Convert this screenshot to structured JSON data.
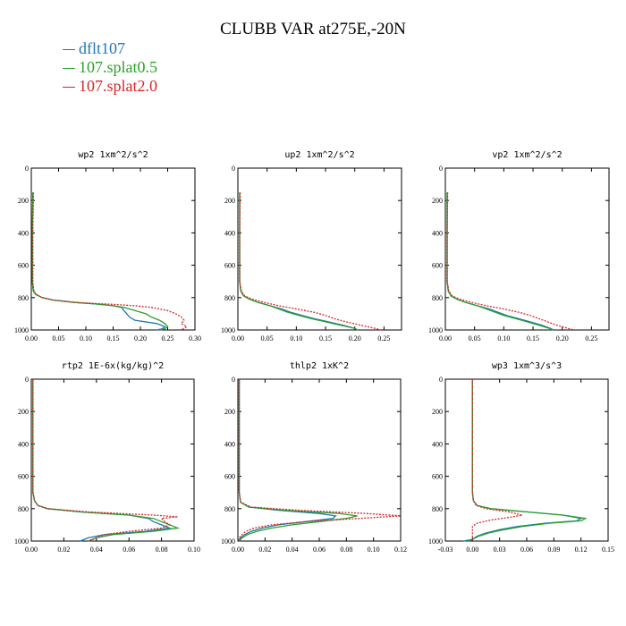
{
  "title": "CLUBB VAR at275E,-20N",
  "legend": [
    {
      "label": "dflt107",
      "color": "#1f77b4"
    },
    {
      "label": "107.splat0.5",
      "color": "#2ca02c"
    },
    {
      "label": "107.splat2.0",
      "color": "#d62728"
    }
  ],
  "chart_data": [
    {
      "type": "line",
      "title": "wp2   1xm^2/s^2",
      "xlim": [
        0,
        0.3
      ],
      "xticks": [
        0.0,
        0.05,
        0.1,
        0.15,
        0.2,
        0.25,
        0.3
      ],
      "xtick_labels": [
        "0.00",
        "0.05",
        "0.10",
        "0.15",
        "0.20",
        "0.25",
        "0.30"
      ],
      "ylim": [
        1000,
        0
      ],
      "yticks": [
        0,
        200,
        400,
        600,
        800,
        1000
      ],
      "series": [
        {
          "name": "dflt107",
          "y": [
            150,
            400,
            600,
            700,
            740,
            760,
            780,
            800,
            815,
            830,
            840,
            850,
            860,
            880,
            900,
            920,
            940,
            960,
            980,
            992,
            1000
          ],
          "x": [
            0.003,
            0.002,
            0.002,
            0.002,
            0.003,
            0.004,
            0.008,
            0.02,
            0.04,
            0.08,
            0.12,
            0.15,
            0.165,
            0.17,
            0.175,
            0.18,
            0.19,
            0.23,
            0.245,
            0.24,
            0.23
          ]
        },
        {
          "name": "107.splat0.5",
          "y": [
            150,
            400,
            600,
            700,
            740,
            760,
            780,
            800,
            815,
            830,
            840,
            850,
            860,
            880,
            900,
            920,
            940,
            960,
            980,
            992,
            1000
          ],
          "x": [
            0.003,
            0.002,
            0.002,
            0.002,
            0.003,
            0.004,
            0.008,
            0.02,
            0.04,
            0.08,
            0.12,
            0.15,
            0.17,
            0.19,
            0.21,
            0.22,
            0.235,
            0.245,
            0.25,
            0.245,
            0.235
          ]
        },
        {
          "name": "107.splat2.0",
          "y": [
            150,
            400,
            600,
            700,
            740,
            760,
            780,
            800,
            815,
            830,
            840,
            850,
            860,
            880,
            900,
            920,
            940,
            960,
            980,
            992,
            1000
          ],
          "x": [
            0.004,
            0.003,
            0.003,
            0.003,
            0.004,
            0.005,
            0.009,
            0.02,
            0.04,
            0.08,
            0.14,
            0.19,
            0.22,
            0.25,
            0.265,
            0.275,
            0.28,
            0.275,
            0.285,
            0.28,
            0.27
          ]
        }
      ]
    },
    {
      "type": "line",
      "title": "up2   1xm^2/s^2",
      "xlim": [
        0,
        0.28
      ],
      "xticks": [
        0.0,
        0.05,
        0.1,
        0.15,
        0.2,
        0.25
      ],
      "xtick_labels": [
        "0.00",
        "0.05",
        "0.10",
        "0.15",
        "0.20",
        "0.25"
      ],
      "ylim": [
        1000,
        0
      ],
      "yticks": [
        0,
        200,
        400,
        600,
        800,
        1000
      ],
      "series": [
        {
          "name": "dflt107",
          "y": [
            150,
            400,
            600,
            700,
            760,
            790,
            810,
            830,
            850,
            870,
            890,
            910,
            930,
            950,
            970,
            990,
            1000
          ],
          "x": [
            0.003,
            0.003,
            0.003,
            0.003,
            0.005,
            0.01,
            0.02,
            0.035,
            0.055,
            0.075,
            0.09,
            0.11,
            0.13,
            0.155,
            0.18,
            0.2,
            0.205
          ]
        },
        {
          "name": "107.splat0.5",
          "y": [
            150,
            400,
            600,
            700,
            760,
            790,
            810,
            830,
            850,
            870,
            890,
            910,
            930,
            950,
            970,
            990,
            1000
          ],
          "x": [
            0.003,
            0.003,
            0.003,
            0.003,
            0.005,
            0.01,
            0.02,
            0.035,
            0.055,
            0.07,
            0.085,
            0.105,
            0.125,
            0.15,
            0.175,
            0.2,
            0.205
          ]
        },
        {
          "name": "107.splat2.0",
          "y": [
            150,
            400,
            600,
            700,
            760,
            790,
            810,
            830,
            850,
            870,
            890,
            910,
            930,
            950,
            970,
            990,
            1000
          ],
          "x": [
            0.004,
            0.003,
            0.003,
            0.003,
            0.006,
            0.012,
            0.025,
            0.045,
            0.07,
            0.1,
            0.13,
            0.15,
            0.165,
            0.185,
            0.21,
            0.235,
            0.245
          ]
        }
      ]
    },
    {
      "type": "line",
      "title": "vp2   1xm^2/s^2",
      "xlim": [
        0,
        0.28
      ],
      "xticks": [
        0.0,
        0.05,
        0.1,
        0.15,
        0.2,
        0.25
      ],
      "xtick_labels": [
        "0.00",
        "0.05",
        "0.10",
        "0.15",
        "0.20",
        "0.25"
      ],
      "ylim": [
        1000,
        0
      ],
      "yticks": [
        0,
        200,
        400,
        600,
        800,
        1000
      ],
      "series": [
        {
          "name": "dflt107",
          "y": [
            150,
            400,
            600,
            700,
            760,
            790,
            810,
            830,
            850,
            870,
            890,
            910,
            930,
            950,
            970,
            990,
            1000
          ],
          "x": [
            0.003,
            0.003,
            0.003,
            0.003,
            0.005,
            0.01,
            0.02,
            0.035,
            0.055,
            0.075,
            0.09,
            0.105,
            0.125,
            0.145,
            0.165,
            0.18,
            0.185
          ]
        },
        {
          "name": "107.splat0.5",
          "y": [
            150,
            400,
            600,
            700,
            760,
            790,
            810,
            830,
            850,
            870,
            890,
            910,
            930,
            950,
            970,
            990,
            1000
          ],
          "x": [
            0.003,
            0.003,
            0.003,
            0.003,
            0.005,
            0.01,
            0.02,
            0.035,
            0.055,
            0.07,
            0.085,
            0.1,
            0.12,
            0.14,
            0.16,
            0.178,
            0.183
          ]
        },
        {
          "name": "107.splat2.0",
          "y": [
            150,
            400,
            600,
            700,
            760,
            790,
            810,
            830,
            850,
            870,
            890,
            910,
            930,
            950,
            970,
            990,
            1000
          ],
          "x": [
            0.004,
            0.003,
            0.003,
            0.003,
            0.006,
            0.012,
            0.025,
            0.045,
            0.07,
            0.1,
            0.125,
            0.145,
            0.16,
            0.175,
            0.19,
            0.21,
            0.22
          ]
        }
      ]
    },
    {
      "type": "line",
      "title": "rtp2   1E-6x(kg/kg)^2",
      "xlim": [
        0,
        0.1
      ],
      "xticks": [
        0.0,
        0.02,
        0.04,
        0.06,
        0.08,
        0.1
      ],
      "xtick_labels": [
        "0.00",
        "0.02",
        "0.04",
        "0.06",
        "0.08",
        "0.10"
      ],
      "ylim": [
        1000,
        0
      ],
      "yticks": [
        0,
        200,
        400,
        600,
        800,
        1000
      ],
      "series": [
        {
          "name": "dflt107",
          "y": [
            0,
            400,
            700,
            750,
            780,
            800,
            820,
            840,
            860,
            880,
            900,
            920,
            940,
            960,
            980,
            1000
          ],
          "x": [
            0.001,
            0.001,
            0.001,
            0.002,
            0.004,
            0.01,
            0.03,
            0.06,
            0.072,
            0.075,
            0.08,
            0.085,
            0.07,
            0.045,
            0.035,
            0.03
          ]
        },
        {
          "name": "107.splat0.5",
          "y": [
            0,
            400,
            700,
            750,
            780,
            800,
            820,
            840,
            860,
            880,
            900,
            920,
            940,
            960,
            980,
            1000
          ],
          "x": [
            0.001,
            0.001,
            0.001,
            0.002,
            0.004,
            0.01,
            0.03,
            0.06,
            0.075,
            0.08,
            0.085,
            0.09,
            0.075,
            0.05,
            0.04,
            0.035
          ]
        },
        {
          "name": "107.splat2.0",
          "y": [
            0,
            400,
            700,
            750,
            780,
            800,
            820,
            840,
            850,
            860,
            880,
            900,
            920,
            940,
            960,
            980,
            1000
          ],
          "x": [
            0.001,
            0.001,
            0.001,
            0.002,
            0.004,
            0.01,
            0.035,
            0.075,
            0.09,
            0.08,
            0.082,
            0.085,
            0.08,
            0.06,
            0.045,
            0.04,
            0.035
          ]
        }
      ]
    },
    {
      "type": "line",
      "title": "thlp2   1xK^2",
      "xlim": [
        0,
        0.12
      ],
      "xticks": [
        0.0,
        0.02,
        0.04,
        0.06,
        0.08,
        0.1,
        0.12
      ],
      "xtick_labels": [
        "0.00",
        "0.02",
        "0.04",
        "0.06",
        "0.08",
        "0.10",
        "0.12"
      ],
      "ylim": [
        1000,
        0
      ],
      "yticks": [
        0,
        200,
        400,
        600,
        800,
        1000
      ],
      "series": [
        {
          "name": "dflt107",
          "y": [
            0,
            400,
            700,
            760,
            790,
            810,
            830,
            845,
            860,
            880,
            900,
            920,
            940,
            960,
            980,
            1000
          ],
          "x": [
            0.001,
            0.001,
            0.001,
            0.002,
            0.008,
            0.03,
            0.06,
            0.072,
            0.07,
            0.05,
            0.03,
            0.018,
            0.01,
            0.005,
            0.002,
            0.001
          ]
        },
        {
          "name": "107.splat0.5",
          "y": [
            0,
            400,
            700,
            760,
            790,
            810,
            830,
            845,
            860,
            880,
            900,
            920,
            940,
            960,
            980,
            1000
          ],
          "x": [
            0.001,
            0.001,
            0.001,
            0.002,
            0.008,
            0.035,
            0.075,
            0.088,
            0.08,
            0.06,
            0.04,
            0.025,
            0.014,
            0.007,
            0.003,
            0.001
          ]
        },
        {
          "name": "107.splat2.0",
          "y": [
            0,
            400,
            700,
            760,
            790,
            810,
            830,
            845,
            860,
            880,
            900,
            920,
            940,
            960,
            980,
            1000
          ],
          "x": [
            0.001,
            0.001,
            0.001,
            0.002,
            0.01,
            0.045,
            0.095,
            0.12,
            0.09,
            0.05,
            0.025,
            0.012,
            0.006,
            0.003,
            0.001,
            0.001
          ]
        }
      ]
    },
    {
      "type": "line",
      "title": "wp3   1xm^3/s^3",
      "xlim": [
        -0.03,
        0.15
      ],
      "xticks": [
        -0.03,
        0.0,
        0.03,
        0.06,
        0.09,
        0.12,
        0.15
      ],
      "xtick_labels": [
        "-0.03",
        "0.00",
        "0.03",
        "0.06",
        "0.09",
        "0.12",
        "0.15"
      ],
      "ylim": [
        1000,
        0
      ],
      "yticks": [
        0,
        200,
        400,
        600,
        800,
        1000
      ],
      "series": [
        {
          "name": "dflt107",
          "y": [
            0,
            400,
            700,
            750,
            780,
            800,
            820,
            840,
            860,
            875,
            890,
            910,
            930,
            950,
            970,
            990,
            1000
          ],
          "x": [
            0.0,
            0.0,
            0.0,
            0.001,
            0.005,
            0.02,
            0.06,
            0.1,
            0.12,
            0.115,
            0.08,
            0.05,
            0.03,
            0.015,
            0.005,
            0.0,
            -0.01
          ]
        },
        {
          "name": "107.splat0.5",
          "y": [
            0,
            400,
            700,
            750,
            780,
            800,
            820,
            840,
            860,
            875,
            890,
            910,
            930,
            950,
            970,
            990,
            1000
          ],
          "x": [
            0.0,
            0.0,
            0.0,
            0.001,
            0.005,
            0.02,
            0.06,
            0.1,
            0.125,
            0.12,
            0.085,
            0.055,
            0.035,
            0.018,
            0.007,
            0.0,
            -0.005
          ]
        },
        {
          "name": "107.splat2.0",
          "y": [
            0,
            400,
            700,
            750,
            780,
            800,
            820,
            840,
            850,
            870,
            890,
            910,
            930,
            950,
            970,
            990,
            1000
          ],
          "x": [
            0.0,
            0.0,
            0.0,
            0.001,
            0.004,
            0.015,
            0.04,
            0.055,
            0.045,
            0.02,
            0.005,
            0.0,
            0.0,
            0.0,
            0.0,
            0.0,
            0.0
          ]
        }
      ]
    }
  ]
}
